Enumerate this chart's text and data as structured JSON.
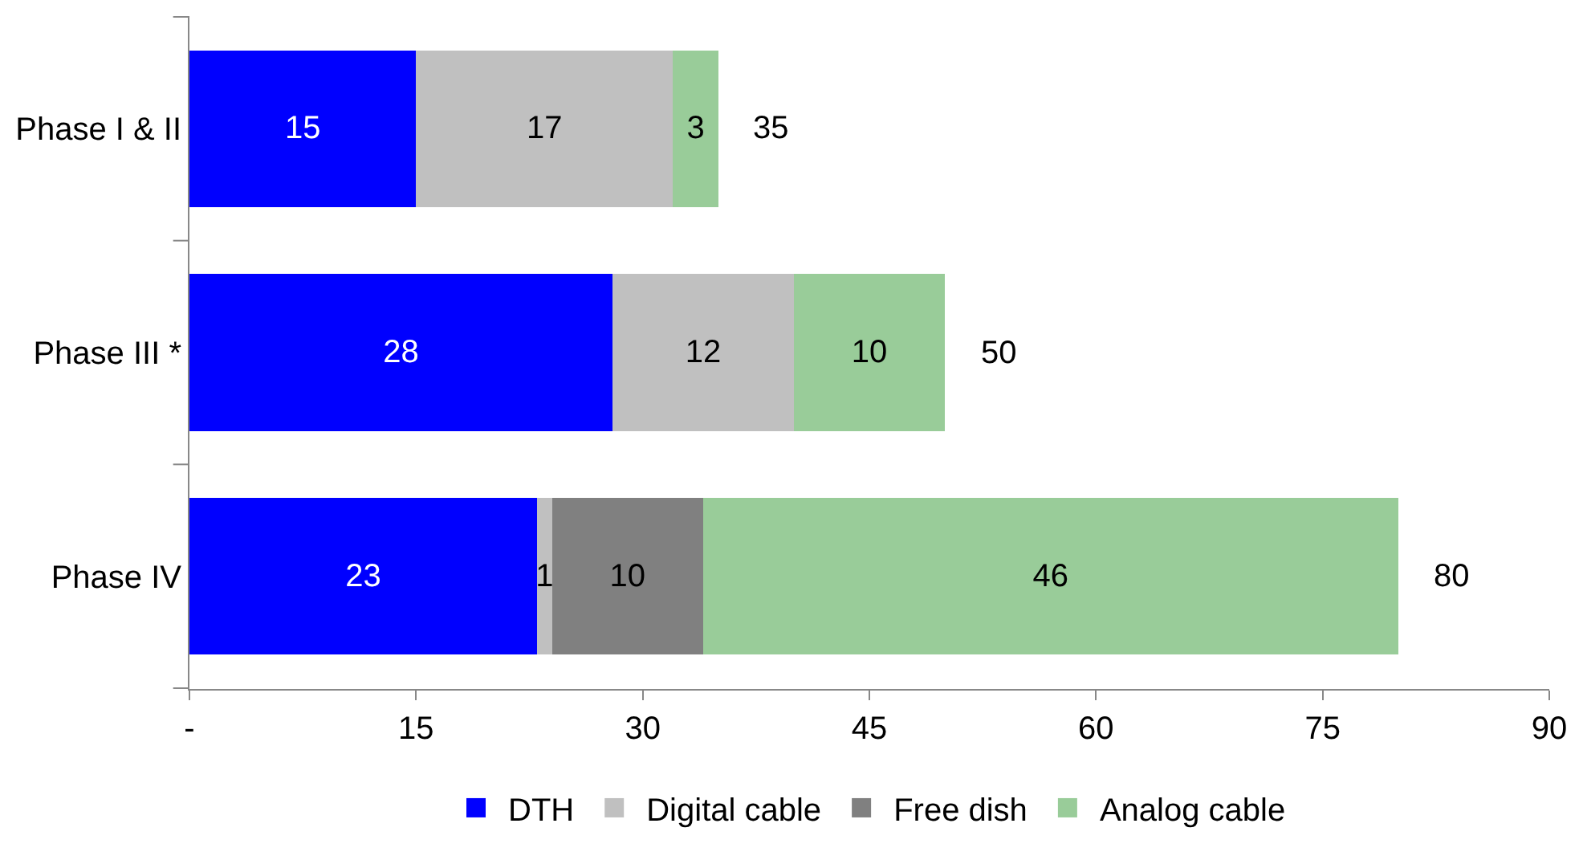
{
  "chart_data": {
    "type": "bar",
    "orientation": "horizontal",
    "stacked": true,
    "categories": [
      "Phase I & II",
      "Phase III *",
      "Phase IV"
    ],
    "series": [
      {
        "name": "DTH",
        "color": "#0000ff",
        "values": [
          15,
          28,
          23
        ]
      },
      {
        "name": "Digital cable",
        "color": "#c0c0c0",
        "values": [
          17,
          12,
          1
        ]
      },
      {
        "name": "Free dish",
        "color": "#808080",
        "values": [
          null,
          null,
          10
        ]
      },
      {
        "name": "Analog cable",
        "color": "#99cc99",
        "values": [
          3,
          10,
          46
        ]
      }
    ],
    "totals": [
      "35",
      "50",
      "80"
    ],
    "data_labels": true,
    "xlim": [
      0,
      90
    ],
    "xticks": [
      {
        "value": 0,
        "label": "-"
      },
      15,
      30,
      45,
      60,
      75,
      90
    ],
    "legend": "bottom"
  }
}
